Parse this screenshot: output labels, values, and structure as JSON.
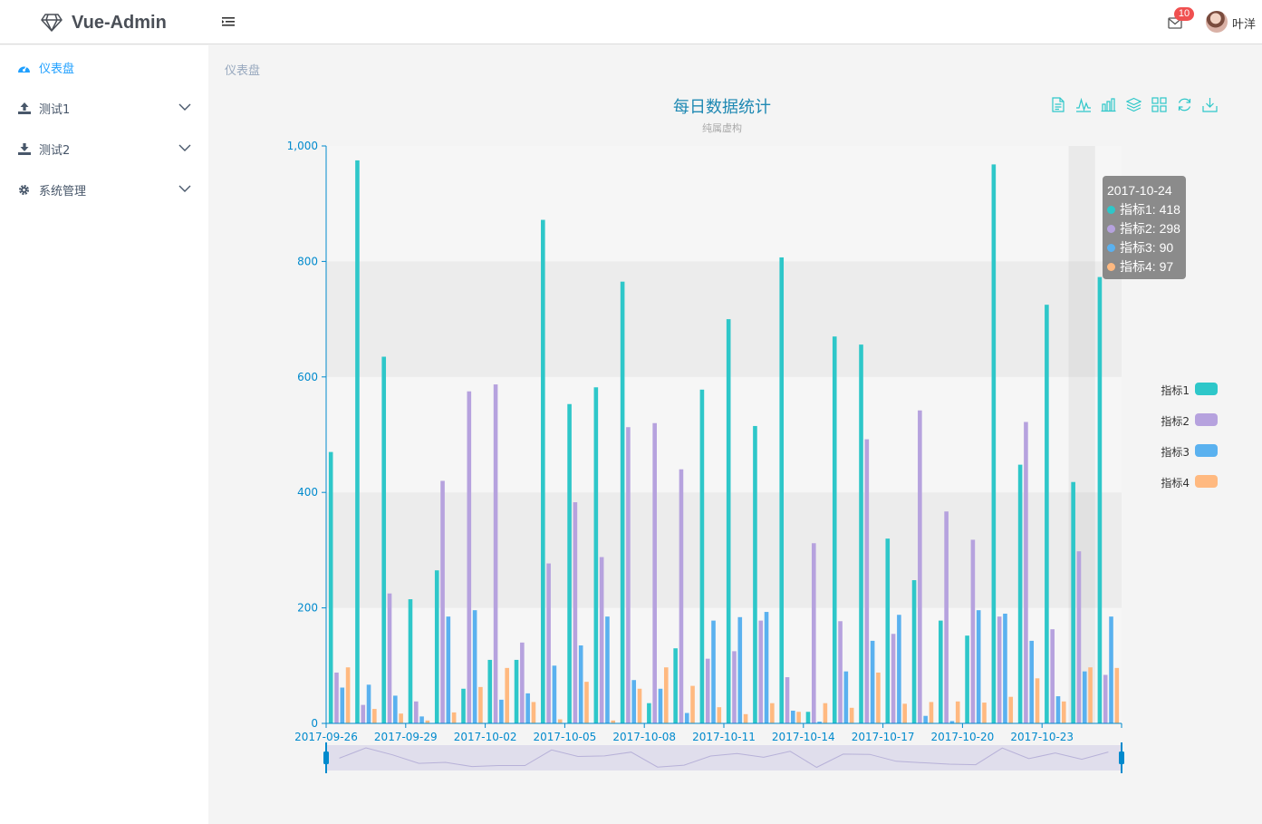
{
  "app": {
    "name": "Vue-Admin"
  },
  "header": {
    "notification_count": "10",
    "user_name": "叶洋"
  },
  "sidebar": {
    "items": [
      {
        "label": "仪表盘",
        "icon": "dashboard-icon",
        "active": true
      },
      {
        "label": "测试1",
        "icon": "upload-icon",
        "expandable": true
      },
      {
        "label": "测试2",
        "icon": "download-icon",
        "expandable": true
      },
      {
        "label": "系统管理",
        "icon": "gear-icon",
        "expandable": true
      }
    ]
  },
  "breadcrumb": "仪表盘",
  "chart_data": {
    "type": "bar",
    "title": "每日数据统计",
    "subtitle": "纯属虚构",
    "ylim": [
      0,
      1000
    ],
    "yticks": [
      "0",
      "200",
      "400",
      "600",
      "800",
      "1,000"
    ],
    "xtick_labels": [
      "2017-09-26",
      "2017-09-29",
      "2017-10-02",
      "2017-10-05",
      "2017-10-08",
      "2017-10-11",
      "2017-10-14",
      "2017-10-17",
      "2017-10-20",
      "2017-10-23"
    ],
    "categories": [
      "2017-09-26",
      "2017-09-27",
      "2017-09-28",
      "2017-09-29",
      "2017-09-30",
      "2017-10-01",
      "2017-10-02",
      "2017-10-03",
      "2017-10-04",
      "2017-10-05",
      "2017-10-06",
      "2017-10-07",
      "2017-10-08",
      "2017-10-09",
      "2017-10-10",
      "2017-10-11",
      "2017-10-12",
      "2017-10-13",
      "2017-10-14",
      "2017-10-15",
      "2017-10-16",
      "2017-10-17",
      "2017-10-18",
      "2017-10-19",
      "2017-10-20",
      "2017-10-21",
      "2017-10-22",
      "2017-10-23",
      "2017-10-24",
      "2017-10-25"
    ],
    "series": [
      {
        "name": "指标1",
        "color": "#2ec7c9",
        "values": [
          470,
          975,
          635,
          215,
          265,
          60,
          110,
          110,
          872,
          553,
          582,
          765,
          35,
          130,
          578,
          700,
          515,
          807,
          20,
          670,
          656,
          320,
          248,
          178,
          152,
          968,
          448,
          725,
          418,
          773
        ]
      },
      {
        "name": "指标2",
        "color": "#b6a2de",
        "values": [
          88,
          32,
          225,
          38,
          420,
          575,
          587,
          140,
          277,
          383,
          288,
          513,
          520,
          440,
          112,
          125,
          178,
          80,
          312,
          177,
          492,
          155,
          542,
          367,
          318,
          185,
          522,
          163,
          298,
          84
        ]
      },
      {
        "name": "指标3",
        "color": "#5ab1ef",
        "values": [
          62,
          67,
          48,
          12,
          185,
          196,
          41,
          52,
          100,
          135,
          185,
          75,
          60,
          18,
          178,
          184,
          193,
          22,
          3,
          90,
          143,
          188,
          13,
          4,
          196,
          190,
          143,
          47,
          90,
          185
        ]
      },
      {
        "name": "指标4",
        "color": "#ffb980",
        "values": [
          97,
          25,
          17,
          5,
          19,
          63,
          96,
          37,
          7,
          72,
          5,
          60,
          97,
          65,
          28,
          16,
          35,
          20,
          35,
          27,
          88,
          34,
          37,
          38,
          36,
          46,
          78,
          38,
          97,
          96
        ]
      }
    ],
    "highlight_category": "2017-10-24",
    "grid": true,
    "legend_position": "right",
    "datazoom": "bottom"
  },
  "tooltip": {
    "title": "2017-10-24",
    "rows": [
      {
        "text": "指标1: 418",
        "color": "#2ec7c9"
      },
      {
        "text": "指标2: 298",
        "color": "#b6a2de"
      },
      {
        "text": "指标3: 90",
        "color": "#5ab1ef"
      },
      {
        "text": "指标4: 97",
        "color": "#ffb980"
      }
    ]
  },
  "toolbox": [
    "data-view-icon",
    "line-chart-icon",
    "bar-chart-icon",
    "stack-icon",
    "tiled-icon",
    "restore-icon",
    "save-image-icon"
  ]
}
